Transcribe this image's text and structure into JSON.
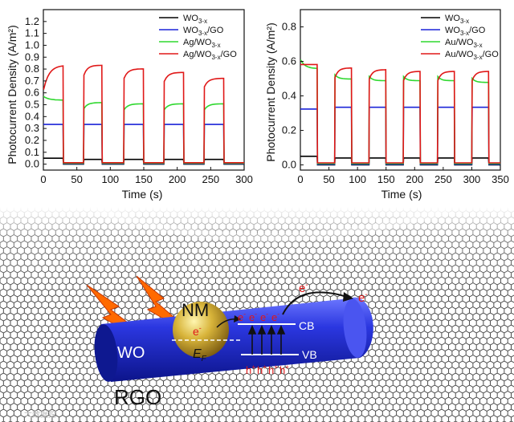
{
  "colors": {
    "wo3x": "#000000",
    "wo3x_go": "#1c24d8",
    "metal_wo3x": "#2fd82f",
    "metal_wo3x_go": "#e01818",
    "rod": "#1f2fd0",
    "sphere": "#c9a830",
    "electron": "#e01818",
    "lightning": "#ff6a00"
  },
  "chart_data": [
    {
      "type": "line",
      "panel": "left",
      "xlabel": "Time (s)",
      "ylabel": "Photocurrent Density (A/m²)",
      "xlim": [
        0,
        300
      ],
      "ylim": [
        -0.05,
        1.3
      ],
      "xticks": [
        0,
        50,
        100,
        150,
        200,
        250,
        300
      ],
      "yticks": [
        0.0,
        0.1,
        0.2,
        0.3,
        0.4,
        0.5,
        0.6,
        0.7,
        0.8,
        0.9,
        1.0,
        1.1,
        1.2
      ],
      "light_on_intervals": [
        [
          0,
          30
        ],
        [
          60,
          88
        ],
        [
          120,
          150
        ],
        [
          180,
          210
        ],
        [
          240,
          270
        ]
      ],
      "series": [
        {
          "name": "WO3-x",
          "base": "WO",
          "sub": "3-x",
          "suffix": "",
          "color_key": "wo3x",
          "dark": 0.0,
          "on_values": [
            0.05,
            0.04,
            0.04,
            0.04,
            0.04
          ],
          "shape": "flat"
        },
        {
          "name": "WO3-x/GO",
          "base": "WO",
          "sub": "3-x",
          "suffix": "/GO",
          "color_key": "wo3x_go",
          "dark": 0.0,
          "on_values": [
            0.33,
            0.33,
            0.33,
            0.33,
            0.33
          ],
          "shape": "flat"
        },
        {
          "name": "Ag/WO3-x",
          "base": "Ag/WO",
          "sub": "3-x",
          "suffix": "",
          "color_key": "metal_wo3x",
          "dark": 0.0,
          "on_values": [
            0.53,
            0.51,
            0.5,
            0.5,
            0.5
          ],
          "shape": "rise",
          "first_start": 0.56
        },
        {
          "name": "Ag/WO3-x/GO",
          "base": "Ag/WO",
          "sub": "3-x",
          "suffix": "/GO",
          "color_key": "metal_wo3x_go",
          "dark": 0.0,
          "on_values": [
            0.82,
            0.82,
            0.79,
            0.76,
            0.71
          ],
          "shape": "rise",
          "first_start": 0.62
        }
      ]
    },
    {
      "type": "line",
      "panel": "right",
      "xlabel": "Time (s)",
      "ylabel": "Photocurrent Density (A/m²)",
      "xlim": [
        0,
        350
      ],
      "ylim": [
        -0.03,
        0.9
      ],
      "xticks": [
        0,
        50,
        100,
        150,
        200,
        250,
        300,
        350
      ],
      "yticks": [
        0.0,
        0.2,
        0.4,
        0.6,
        0.8
      ],
      "light_on_intervals": [
        [
          0,
          30
        ],
        [
          60,
          90
        ],
        [
          120,
          150
        ],
        [
          180,
          210
        ],
        [
          240,
          270
        ],
        [
          300,
          330
        ]
      ],
      "series": [
        {
          "name": "WO3-x",
          "base": "WO",
          "sub": "3-x",
          "suffix": "",
          "color_key": "wo3x",
          "dark": 0.0,
          "on_values": [
            0.05,
            0.04,
            0.04,
            0.04,
            0.04,
            0.04
          ],
          "shape": "flat"
        },
        {
          "name": "WO3-x/GO",
          "base": "WO",
          "sub": "3-x",
          "suffix": "/GO",
          "color_key": "wo3x_go",
          "dark": 0.0,
          "on_values": [
            0.32,
            0.33,
            0.33,
            0.33,
            0.33,
            0.33
          ],
          "shape": "flat"
        },
        {
          "name": "Au/WO3-x",
          "base": "Au/WO",
          "sub": "3-x",
          "suffix": "",
          "color_key": "metal_wo3x",
          "dark": 0.0,
          "on_values": [
            0.55,
            0.49,
            0.48,
            0.48,
            0.48,
            0.47
          ],
          "shape": "decay",
          "first_start": 0.6
        },
        {
          "name": "Au/WO3-x/GO",
          "base": "Au/WO",
          "sub": "3-x",
          "suffix": "/GO",
          "color_key": "metal_wo3x_go",
          "dark": 0.0,
          "on_values": [
            0.57,
            0.55,
            0.54,
            0.53,
            0.53,
            0.53
          ],
          "shape": "rise",
          "first_start": 0.57
        }
      ]
    }
  ],
  "scheme": {
    "substrate_label": "RGO",
    "rod_label": "WO",
    "particle_label": "NM",
    "fermi_label": "E",
    "fermi_sub": "F",
    "electron_symbol": "e",
    "electron_charge": "-",
    "hole_symbol": "h",
    "hole_charge": "+",
    "cb_label": "CB",
    "vb_label": "VB",
    "watermark": "大数据挖"
  }
}
